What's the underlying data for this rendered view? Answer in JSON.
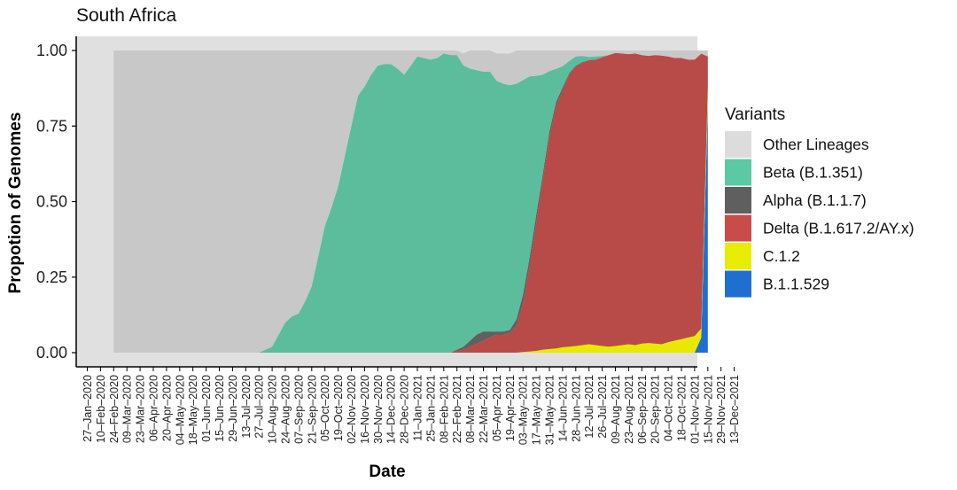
{
  "chart_data": {
    "type": "area",
    "stacked": true,
    "title": "South Africa",
    "xlabel": "Date",
    "ylabel": "Propotion of Genomes",
    "ylim": [
      0,
      1
    ],
    "yticks": [
      "0.00",
      "0.25",
      "0.50",
      "0.75",
      "1.00"
    ],
    "legend_title": "Variants",
    "legend_position": "right",
    "x_tick_labels": [
      "27–Jan–2020",
      "10–Feb–2020",
      "24–Feb–2020",
      "09–Mar–2020",
      "23–Mar–2020",
      "06–Apr–2020",
      "20–Apr–2020",
      "04–May–2020",
      "18–May–2020",
      "01–Jun–2020",
      "15–Jun–2020",
      "29–Jun–2020",
      "13–Jul–2020",
      "27–Jul–2020",
      "10–Aug–2020",
      "24–Aug–2020",
      "07–Sep–2020",
      "21–Sep–2020",
      "05–Oct–2020",
      "19–Oct–2020",
      "02–Nov–2020",
      "16–Nov–2020",
      "30–Nov–2020",
      "14–Dec–2020",
      "28–Dec–2020",
      "11–Jan–2021",
      "25–Jan–2021",
      "08–Feb–2021",
      "22–Feb–2021",
      "08–Mar–2021",
      "22–Mar–2021",
      "05–Apr–2021",
      "19–Apr–2021",
      "03–May–2021",
      "17–May–2021",
      "31–May–2021",
      "14–Jun–2021",
      "28–Jun–2021",
      "12–Jul–2021",
      "26–Jul–2021",
      "09–Aug–2021",
      "23–Aug–2021",
      "06–Sep–2021",
      "20–Sep–2021",
      "04–Oct–2021",
      "18–Oct–2021",
      "01–Nov–2021",
      "15–Nov–2021",
      "29–Nov–2021",
      "13–Dec–2021"
    ],
    "x": [
      "2020-02-24",
      "2020-03-09",
      "2020-03-23",
      "2020-04-06",
      "2020-04-20",
      "2020-05-04",
      "2020-05-18",
      "2020-06-01",
      "2020-06-15",
      "2020-06-29",
      "2020-07-13",
      "2020-07-27",
      "2020-08-10",
      "2020-08-17",
      "2020-08-24",
      "2020-08-31",
      "2020-09-07",
      "2020-09-14",
      "2020-09-21",
      "2020-09-28",
      "2020-10-05",
      "2020-10-12",
      "2020-10-19",
      "2020-10-26",
      "2020-11-02",
      "2020-11-09",
      "2020-11-16",
      "2020-11-23",
      "2020-11-30",
      "2020-12-07",
      "2020-12-14",
      "2020-12-21",
      "2020-12-28",
      "2021-01-04",
      "2021-01-11",
      "2021-01-18",
      "2021-01-25",
      "2021-02-01",
      "2021-02-08",
      "2021-02-15",
      "2021-02-22",
      "2021-03-01",
      "2021-03-08",
      "2021-03-15",
      "2021-03-22",
      "2021-03-29",
      "2021-04-05",
      "2021-04-12",
      "2021-04-19",
      "2021-04-26",
      "2021-05-03",
      "2021-05-10",
      "2021-05-17",
      "2021-05-24",
      "2021-05-31",
      "2021-06-07",
      "2021-06-14",
      "2021-06-21",
      "2021-06-28",
      "2021-07-05",
      "2021-07-12",
      "2021-07-19",
      "2021-07-26",
      "2021-08-02",
      "2021-08-09",
      "2021-08-16",
      "2021-08-23",
      "2021-08-30",
      "2021-09-06",
      "2021-09-13",
      "2021-09-20",
      "2021-09-27",
      "2021-10-04",
      "2021-10-11",
      "2021-10-18",
      "2021-10-25",
      "2021-11-01",
      "2021-11-08",
      "2021-11-15"
    ],
    "series": [
      {
        "name": "B.1.1.529",
        "color": "#1f6fd1",
        "values": [
          0,
          0,
          0,
          0,
          0,
          0,
          0,
          0,
          0,
          0,
          0,
          0,
          0,
          0,
          0,
          0,
          0,
          0,
          0,
          0,
          0,
          0,
          0,
          0,
          0,
          0,
          0,
          0,
          0,
          0,
          0,
          0,
          0,
          0,
          0,
          0,
          0,
          0,
          0,
          0,
          0,
          0,
          0,
          0,
          0,
          0,
          0,
          0,
          0,
          0,
          0,
          0,
          0,
          0,
          0,
          0,
          0,
          0,
          0,
          0,
          0,
          0,
          0,
          0,
          0,
          0,
          0,
          0,
          0,
          0,
          0,
          0,
          0,
          0,
          0,
          0,
          0,
          0.05,
          0.82
        ]
      },
      {
        "name": "C.1.2",
        "color": "#e9e900",
        "values": [
          0,
          0,
          0,
          0,
          0,
          0,
          0,
          0,
          0,
          0,
          0,
          0,
          0,
          0,
          0,
          0,
          0,
          0,
          0,
          0,
          0,
          0,
          0,
          0,
          0,
          0,
          0,
          0,
          0,
          0,
          0,
          0,
          0,
          0,
          0,
          0,
          0,
          0,
          0,
          0,
          0,
          0,
          0,
          0,
          0,
          0,
          0,
          0,
          0,
          0,
          0.002,
          0.004,
          0.006,
          0.01,
          0.012,
          0.014,
          0.018,
          0.02,
          0.022,
          0.025,
          0.028,
          0.025,
          0.022,
          0.02,
          0.022,
          0.025,
          0.028,
          0.025,
          0.03,
          0.032,
          0.03,
          0.028,
          0.035,
          0.04,
          0.045,
          0.05,
          0.055,
          0.03,
          0.06
        ]
      },
      {
        "name": "Delta (B.1.617.2/AY.x)",
        "color": "#b84a48",
        "values": [
          0,
          0,
          0,
          0,
          0,
          0,
          0,
          0,
          0,
          0,
          0,
          0,
          0,
          0,
          0,
          0,
          0,
          0,
          0,
          0,
          0,
          0,
          0,
          0,
          0,
          0,
          0,
          0,
          0,
          0,
          0,
          0,
          0,
          0,
          0,
          0,
          0,
          0,
          0,
          0,
          0.005,
          0.01,
          0.02,
          0.03,
          0.04,
          0.05,
          0.06,
          0.06,
          0.065,
          0.09,
          0.16,
          0.28,
          0.42,
          0.56,
          0.7,
          0.8,
          0.85,
          0.9,
          0.925,
          0.935,
          0.94,
          0.945,
          0.955,
          0.965,
          0.97,
          0.965,
          0.96,
          0.965,
          0.955,
          0.95,
          0.955,
          0.955,
          0.945,
          0.935,
          0.93,
          0.92,
          0.915,
          0.91,
          0.1
        ]
      },
      {
        "name": "Alpha (B.1.1.7)",
        "color": "#606060",
        "values": [
          0,
          0,
          0,
          0,
          0,
          0,
          0,
          0,
          0,
          0,
          0,
          0,
          0,
          0,
          0,
          0,
          0,
          0,
          0,
          0,
          0,
          0,
          0,
          0,
          0,
          0,
          0,
          0,
          0,
          0,
          0,
          0,
          0,
          0,
          0,
          0,
          0,
          0,
          0,
          0,
          0.005,
          0.01,
          0.02,
          0.03,
          0.03,
          0.02,
          0.01,
          0.01,
          0.01,
          0.02,
          0.03,
          0.03,
          0.03,
          0.02,
          0.02,
          0.015,
          0.01,
          0.005,
          0.003,
          0.002,
          0.001,
          0,
          0,
          0,
          0,
          0,
          0,
          0,
          0,
          0,
          0,
          0,
          0,
          0,
          0,
          0,
          0,
          0,
          0
        ]
      },
      {
        "name": "Beta (B.1.351)",
        "color": "#5bbd9c",
        "values": [
          0,
          0,
          0,
          0,
          0,
          0,
          0,
          0,
          0,
          0,
          0,
          0,
          0.02,
          0.06,
          0.1,
          0.12,
          0.13,
          0.17,
          0.22,
          0.32,
          0.42,
          0.48,
          0.55,
          0.65,
          0.75,
          0.85,
          0.88,
          0.92,
          0.95,
          0.955,
          0.955,
          0.94,
          0.92,
          0.95,
          0.98,
          0.975,
          0.97,
          0.975,
          0.99,
          0.985,
          0.975,
          0.93,
          0.9,
          0.875,
          0.86,
          0.86,
          0.83,
          0.82,
          0.81,
          0.78,
          0.71,
          0.6,
          0.46,
          0.33,
          0.2,
          0.11,
          0.07,
          0.04,
          0.03,
          0.02,
          0.01,
          0.01,
          0.005,
          0,
          0,
          0,
          0,
          0,
          0,
          0,
          0,
          0,
          0,
          0,
          0,
          0,
          0,
          0,
          0
        ]
      },
      {
        "name": "Other Lineages",
        "color": "#c8c8c8",
        "values": [
          1,
          1,
          1,
          1,
          1,
          1,
          1,
          1,
          1,
          1,
          1,
          1,
          0.98,
          0.94,
          0.9,
          0.88,
          0.87,
          0.83,
          0.78,
          0.68,
          0.58,
          0.52,
          0.45,
          0.35,
          0.25,
          0.15,
          0.12,
          0.08,
          0.05,
          0.045,
          0.045,
          0.06,
          0.08,
          0.05,
          0.02,
          0.025,
          0.03,
          0.025,
          0.01,
          0.015,
          0.015,
          0.04,
          0.06,
          0.065,
          0.07,
          0.07,
          0.09,
          0.1,
          0.105,
          0.11,
          0.098,
          0.086,
          0.084,
          0.08,
          0.068,
          0.061,
          0.052,
          0.035,
          0.02,
          0.018,
          0.021,
          0.02,
          0.018,
          0.015,
          0.008,
          0.01,
          0.012,
          0.01,
          0.015,
          0.018,
          0.015,
          0.017,
          0.02,
          0.025,
          0.025,
          0.03,
          0.03,
          0.01,
          0.02
        ]
      }
    ],
    "legend": [
      {
        "name": "Other Lineages",
        "color": "#dcdcdc"
      },
      {
        "name": "Beta (B.1.351)",
        "color": "#5bc9a4"
      },
      {
        "name": "Alpha (B.1.1.7)",
        "color": "#5f5f5f"
      },
      {
        "name": "Delta (B.1.617.2/AY.x)",
        "color": "#c94c4a"
      },
      {
        "name": "C.1.2",
        "color": "#e8ec00"
      },
      {
        "name": "B.1.1.529",
        "color": "#1f6fd1"
      }
    ],
    "panel_background": "#e0e0e0",
    "grid": false
  }
}
